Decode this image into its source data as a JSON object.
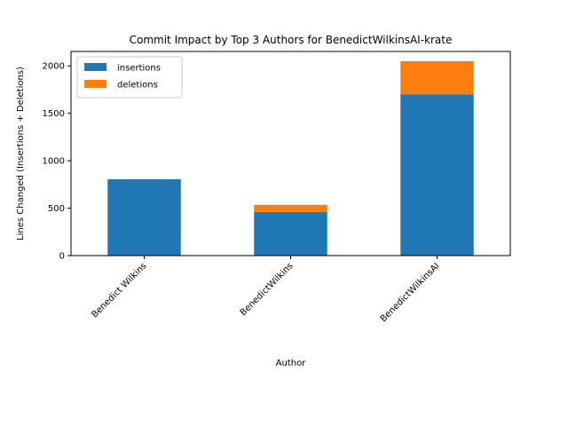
{
  "chart_data": {
    "type": "bar",
    "stacked": true,
    "title": "Commit Impact by Top 3 Authors for BenedictWilkinsAI-krate",
    "xlabel": "Author",
    "ylabel": "Lines Changed (Insertions + Deletions)",
    "categories": [
      "Benedict Wilkins",
      "BenedictWilkins",
      "BenedictWilkinsAI"
    ],
    "series": [
      {
        "name": "insertions",
        "values": [
          805,
          460,
          1700
        ],
        "color": "#1f77b4"
      },
      {
        "name": "deletions",
        "values": [
          0,
          75,
          350
        ],
        "color": "#ff7f0e"
      }
    ],
    "ylim": [
      0,
      2152
    ],
    "yticks": [
      0,
      500,
      1000,
      1500,
      2000
    ],
    "grid": false,
    "legend": "top-left"
  }
}
